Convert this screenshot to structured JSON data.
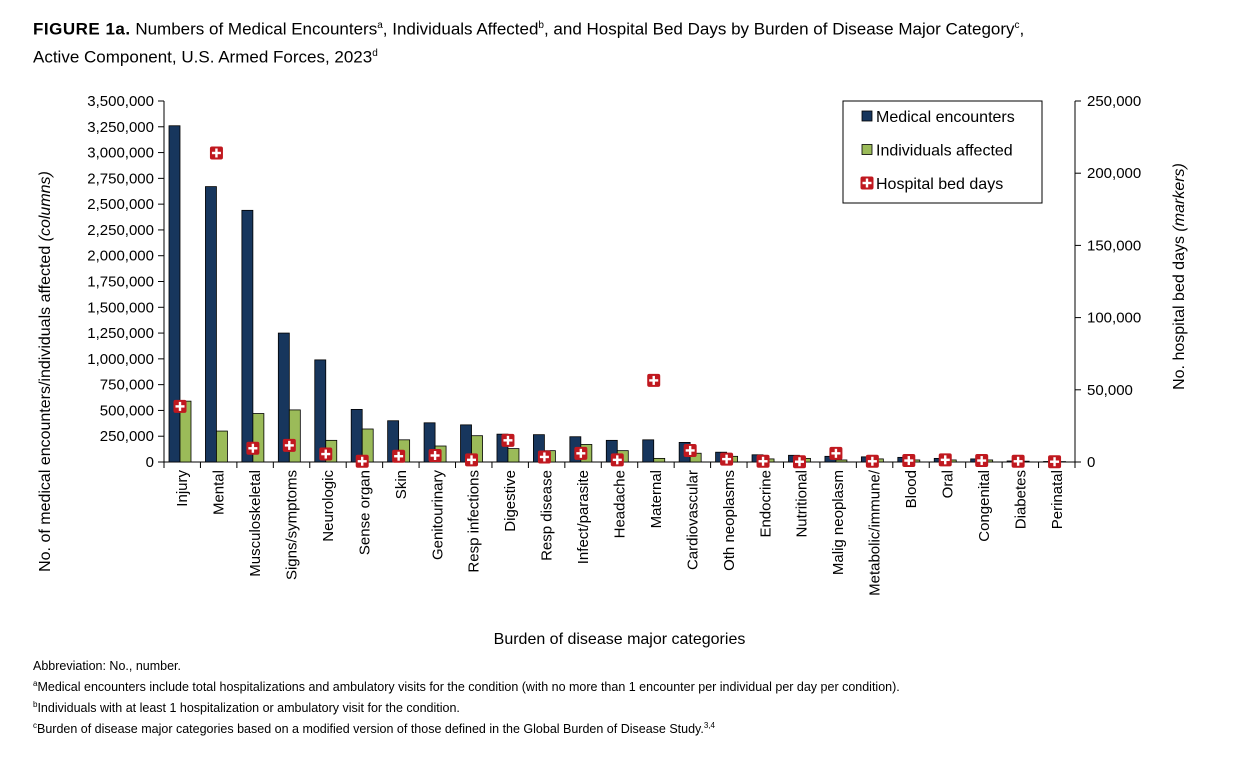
{
  "title": {
    "label": "FIGURE 1a.",
    "parts": [
      "Numbers of Medical Encounters",
      "a",
      ", Individuals Affected",
      "b",
      ", and Hospital Bed Days by Burden of Disease Major Category",
      "c",
      ","
    ],
    "line2": "Active Component, U.S. Armed Forces, 2023",
    "line2_sup": "d"
  },
  "chart_data": {
    "type": "bar",
    "xlabel": "Burden of disease major categories",
    "ylabel": "No. of medical encounters/individuals affected",
    "ylabel_note": "(columns)",
    "y2label": "No. hospital bed days",
    "y2label_note": "(markers)",
    "ylim": [
      0,
      3500000
    ],
    "y2lim": [
      0,
      250000
    ],
    "yticks": [
      "0",
      "250,000",
      "500,000",
      "750,000",
      "1,000,000",
      "1,250,000",
      "1,500,000",
      "1,750,000",
      "2,000,000",
      "2,250,000",
      "2,500,000",
      "2,750,000",
      "3,000,000",
      "3,250,000",
      "3,500,000"
    ],
    "y2ticks": [
      "0",
      "50,000",
      "100,000",
      "150,000",
      "200,000",
      "250,000"
    ],
    "legend_position": "top-right",
    "categories": [
      "Injury",
      "Mental",
      "Musculoskeletal",
      "Signs/symptoms",
      "Neurologic",
      "Sense organ",
      "Skin",
      "Genitourinary",
      "Resp infections",
      "Digestive",
      "Resp disease",
      "Infect/parasite",
      "Headache",
      "Maternal",
      "Cardiovascular",
      "Oth neoplasms",
      "Endocrine",
      "Nutritional",
      "Malig neoplasm",
      "Metabolic/immune/",
      "Blood",
      "Oral",
      "Congenital",
      "Diabetes",
      "Perinatal"
    ],
    "series": [
      {
        "name": "Medical encounters",
        "kind": "bar",
        "axis": "left",
        "color": "#17365d",
        "values": [
          3260000,
          2670000,
          2440000,
          1250000,
          990000,
          510000,
          400000,
          380000,
          360000,
          270000,
          265000,
          245000,
          210000,
          215000,
          190000,
          95000,
          70000,
          65000,
          55000,
          50000,
          45000,
          35000,
          30000,
          10000,
          5000
        ]
      },
      {
        "name": "Individuals affected",
        "kind": "bar",
        "axis": "left",
        "color": "#9bbb59",
        "values": [
          590000,
          300000,
          470000,
          505000,
          210000,
          320000,
          215000,
          155000,
          255000,
          130000,
          110000,
          170000,
          110000,
          35000,
          85000,
          55000,
          30000,
          35000,
          20000,
          30000,
          20000,
          20000,
          20000,
          8000,
          4000
        ]
      },
      {
        "name": "Hospital bed days",
        "kind": "marker",
        "axis": "right",
        "color": "#c0181f",
        "values": [
          38500,
          214000,
          9500,
          11500,
          5500,
          500,
          4000,
          4500,
          1500,
          15000,
          3500,
          6000,
          1500,
          56500,
          8000,
          2000,
          500,
          200,
          6000,
          500,
          1000,
          1500,
          1000,
          500,
          200
        ]
      }
    ]
  },
  "notes": {
    "abbreviation": "Abbreviation: No., number.",
    "items": [
      {
        "mark": "a",
        "text": "Medical encounters include total hospitalizations and ambulatory visits for the condition (with no more than 1 encounter per individual per day per condition)."
      },
      {
        "mark": "b",
        "text": "Individuals with at least 1 hospitalization or ambulatory visit for the condition."
      },
      {
        "mark": "c",
        "text": "Burden of disease major categories based on a modified version of those defined in the Global Burden of Disease Study.",
        "ref": "3,4"
      }
    ]
  }
}
